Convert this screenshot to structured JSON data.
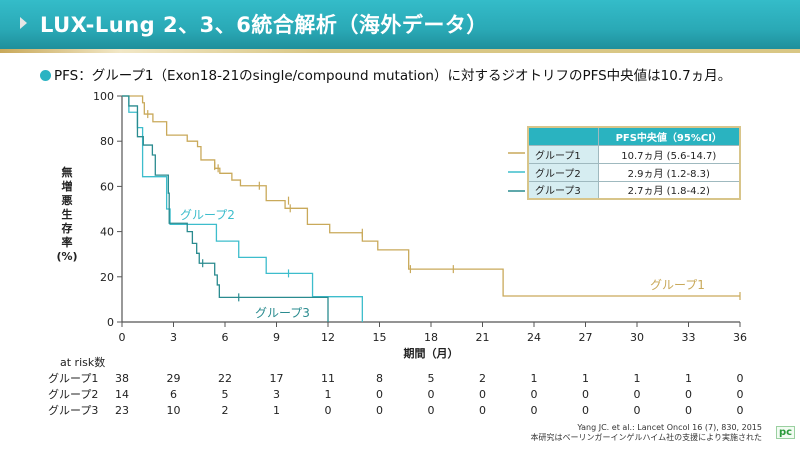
{
  "header": {
    "title": "LUX-Lung 2、3、6統合解析（海外データ）"
  },
  "subtitle": "PFS：グループ1（Exon18-21のsingle/compound mutation）に対するジオトリフのPFS中央値は10.7ヵ月。",
  "reference": {
    "citation": "Yang JC. et al.: Lancet Oncol 16 (7), 830, 2015",
    "note": "本研究はベーリンガーインゲルハイム社の支援により実施された",
    "badge": "pc"
  },
  "pfs_table": {
    "header": "PFS中央値（95%CI）",
    "rows": [
      {
        "group": "グループ1",
        "value": "10.7ヵ月 (5.6-14.7)"
      },
      {
        "group": "グループ2",
        "value": "2.9ヵ月 (1.2-8.3)"
      },
      {
        "group": "グループ3",
        "value": "2.7ヵ月 (1.8-4.2)"
      }
    ]
  },
  "chart_data": {
    "type": "line",
    "subtype": "kaplan-meier step",
    "xlabel": "期間（月）",
    "ylabel": "無増悪生存率(%)",
    "xlim": [
      0,
      36
    ],
    "ylim": [
      0,
      100
    ],
    "xticks": [
      0,
      3,
      6,
      9,
      12,
      15,
      18,
      21,
      24,
      27,
      30,
      33,
      36
    ],
    "yticks": [
      0,
      20,
      40,
      60,
      80,
      100
    ],
    "grid": false,
    "series": [
      {
        "name": "グループ1",
        "color": "#c9a95a",
        "label": "グループ1",
        "steps": [
          [
            0,
            100
          ],
          [
            1.2,
            97
          ],
          [
            1.3,
            92
          ],
          [
            1.8,
            88.6
          ],
          [
            2.6,
            82.7
          ],
          [
            3.8,
            80
          ],
          [
            4.4,
            77.6
          ],
          [
            4.6,
            71.7
          ],
          [
            5.4,
            68
          ],
          [
            5.7,
            65.8
          ],
          [
            6.4,
            62.8
          ],
          [
            6.9,
            60.3
          ],
          [
            8.4,
            53.7
          ],
          [
            9.5,
            50.3
          ],
          [
            10.8,
            43.2
          ],
          [
            12.1,
            39.5
          ],
          [
            14.0,
            35.8
          ],
          [
            14.9,
            31.9
          ],
          [
            16.7,
            23.4
          ],
          [
            22.2,
            11.5
          ],
          [
            36,
            11.5
          ]
        ],
        "censored": [
          [
            1.5,
            92
          ],
          [
            5.4,
            69
          ],
          [
            5.6,
            68
          ],
          [
            8.0,
            60.3
          ],
          [
            9.7,
            53.7
          ],
          [
            9.8,
            50.3
          ],
          [
            14.0,
            39.5
          ],
          [
            16.8,
            23.4
          ],
          [
            19.3,
            23.4
          ],
          [
            36,
            11.5
          ]
        ]
      },
      {
        "name": "グループ2",
        "color": "#3dbdcc",
        "label": "グループ2",
        "steps": [
          [
            0,
            100
          ],
          [
            0.4,
            92.8
          ],
          [
            0.9,
            86
          ],
          [
            1.2,
            64.3
          ],
          [
            2.6,
            50
          ],
          [
            2.8,
            43.2
          ],
          [
            5.5,
            35.8
          ],
          [
            6.8,
            28.6
          ],
          [
            8.4,
            21.5
          ],
          [
            11.1,
            11.2
          ],
          [
            14.0,
            0
          ]
        ],
        "censored": [
          [
            9.7,
            21.5
          ]
        ]
      },
      {
        "name": "グループ3",
        "color": "#2a8b8f",
        "label": "グループ3",
        "steps": [
          [
            0,
            100
          ],
          [
            0.4,
            95.6
          ],
          [
            0.9,
            82
          ],
          [
            1.24,
            78.3
          ],
          [
            1.77,
            73.9
          ],
          [
            1.94,
            65
          ],
          [
            2.7,
            57
          ],
          [
            2.75,
            43.7
          ],
          [
            3.8,
            40
          ],
          [
            4.1,
            34.8
          ],
          [
            4.35,
            30.4
          ],
          [
            4.5,
            26
          ],
          [
            5.4,
            20.8
          ],
          [
            5.55,
            16.4
          ],
          [
            5.67,
            10.9
          ],
          [
            12.0,
            0
          ]
        ],
        "censored": [
          [
            4.7,
            26
          ],
          [
            6.8,
            10.9
          ]
        ]
      }
    ],
    "at_risk": {
      "label": "at risk数",
      "times": [
        0,
        3,
        6,
        9,
        12,
        15,
        18,
        21,
        24,
        27,
        30,
        33,
        36
      ],
      "rows": [
        {
          "group": "グループ1",
          "values": [
            38,
            29,
            22,
            17,
            11,
            8,
            5,
            2,
            1,
            1,
            1,
            1,
            0
          ]
        },
        {
          "group": "グループ2",
          "values": [
            14,
            6,
            5,
            3,
            1,
            0,
            0,
            0,
            0,
            0,
            0,
            0,
            0
          ]
        },
        {
          "group": "グループ3",
          "values": [
            23,
            10,
            2,
            1,
            0,
            0,
            0,
            0,
            0,
            0,
            0,
            0,
            0
          ]
        }
      ]
    }
  }
}
